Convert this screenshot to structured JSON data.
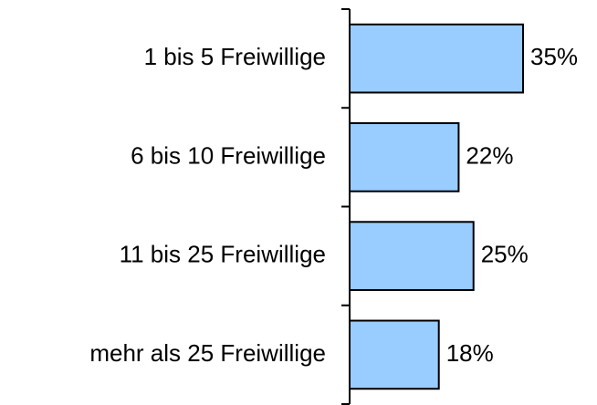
{
  "chart_data": {
    "type": "barh",
    "categories": [
      "1 bis 5 Freiwillige",
      "6 bis 10 Freiwillige",
      "11 bis 25 Freiwillige",
      "mehr als 25 Freiwillige"
    ],
    "values": [
      35,
      22,
      25,
      18
    ],
    "value_labels": [
      "35%",
      "22%",
      "25%",
      "18%"
    ],
    "color": "#99ccff"
  }
}
